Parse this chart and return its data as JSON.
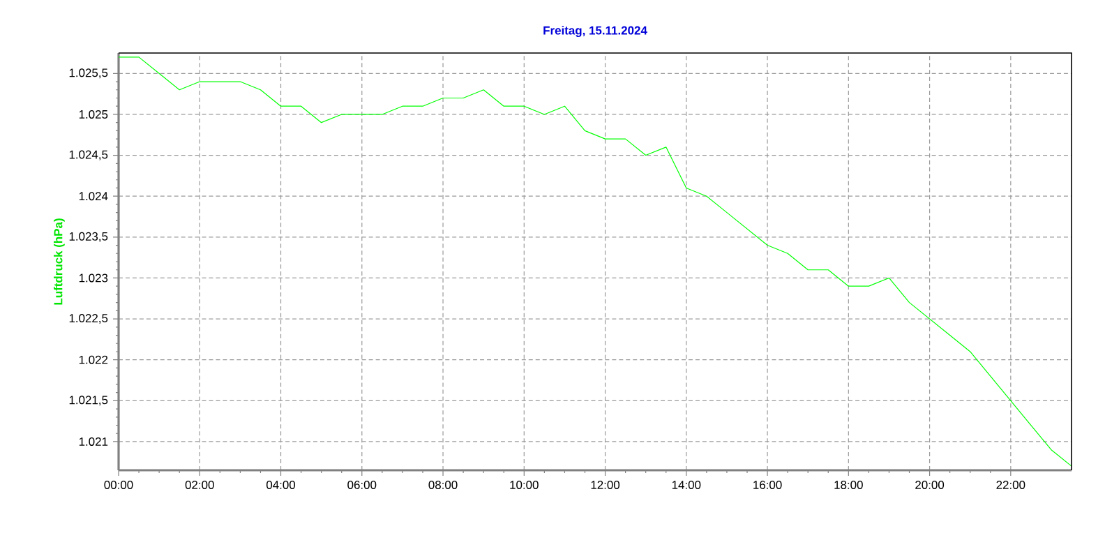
{
  "chart_data": {
    "type": "line",
    "title": "Freitag, 15.11.2024",
    "ylabel": "Luftdruck (hPa)",
    "x": [
      0,
      0.5,
      1,
      1.5,
      2,
      2.5,
      3,
      3.5,
      4,
      4.5,
      5,
      5.5,
      6,
      6.5,
      7,
      7.5,
      8,
      8.5,
      9,
      9.5,
      10,
      10.5,
      11,
      11.5,
      12,
      12.5,
      13,
      13.5,
      14,
      14.5,
      15,
      15.5,
      16,
      16.5,
      17,
      17.5,
      18,
      18.5,
      19,
      19.5,
      20,
      20.5,
      21,
      21.5,
      22,
      22.5,
      23,
      23.5
    ],
    "series": [
      {
        "color": "#00ff00",
        "values": [
          1025.7,
          1025.7,
          1025.5,
          1025.3,
          1025.4,
          1025.4,
          1025.4,
          1025.3,
          1025.1,
          1025.1,
          1024.9,
          1025.0,
          1025.0,
          1025.0,
          1025.1,
          1025.1,
          1025.2,
          1025.2,
          1025.3,
          1025.1,
          1025.1,
          1025.0,
          1025.1,
          1024.8,
          1024.7,
          1024.7,
          1024.5,
          1024.6,
          1024.1,
          1024.0,
          1023.8,
          1023.6,
          1023.4,
          1023.3,
          1023.1,
          1023.1,
          1022.9,
          1022.9,
          1023.0,
          1022.7,
          1022.5,
          1022.3,
          1022.1,
          1021.8,
          1021.5,
          1021.2,
          1020.9,
          1020.7
        ]
      }
    ],
    "xlim": [
      0,
      23.5
    ],
    "ylim": [
      1020.65,
      1025.75
    ],
    "xticks": [
      {
        "value": 0,
        "label": "00:00"
      },
      {
        "value": 2,
        "label": "02:00"
      },
      {
        "value": 4,
        "label": "04:00"
      },
      {
        "value": 6,
        "label": "06:00"
      },
      {
        "value": 8,
        "label": "08:00"
      },
      {
        "value": 10,
        "label": "10:00"
      },
      {
        "value": 12,
        "label": "12:00"
      },
      {
        "value": 14,
        "label": "14:00"
      },
      {
        "value": 16,
        "label": "16:00"
      },
      {
        "value": 18,
        "label": "18:00"
      },
      {
        "value": 20,
        "label": "20:00"
      },
      {
        "value": 22,
        "label": "22:00"
      }
    ],
    "yticks": [
      {
        "value": 1021,
        "label": "1.021"
      },
      {
        "value": 1021.5,
        "label": "1.021,5"
      },
      {
        "value": 1022,
        "label": "1.022"
      },
      {
        "value": 1022.5,
        "label": "1.022,5"
      },
      {
        "value": 1023,
        "label": "1.023"
      },
      {
        "value": 1023.5,
        "label": "1.023,5"
      },
      {
        "value": 1024,
        "label": "1.024"
      },
      {
        "value": 1024.5,
        "label": "1.024,5"
      },
      {
        "value": 1025,
        "label": "1.025"
      },
      {
        "value": 1025.5,
        "label": "1.025,5"
      }
    ],
    "grid": true,
    "legend": false,
    "marker": "none",
    "line_style": "solid"
  }
}
